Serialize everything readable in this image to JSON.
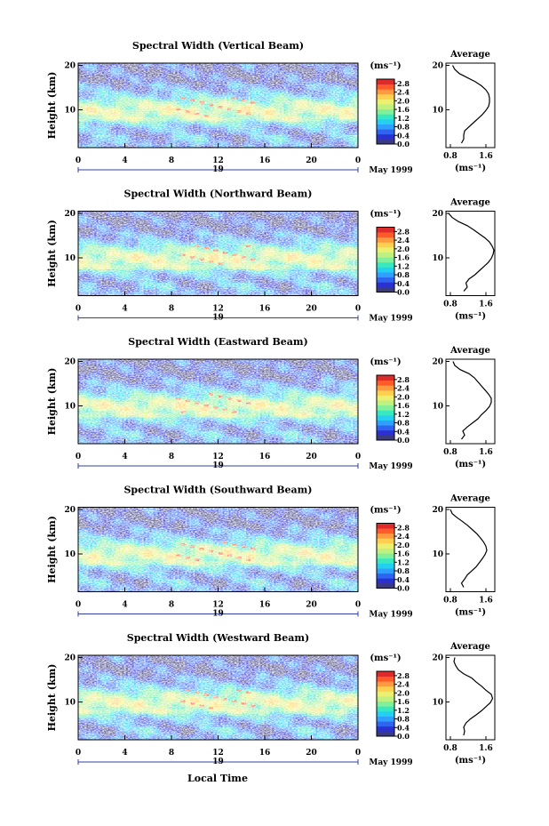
{
  "chart_data": {
    "type": "heatmap",
    "panels": [
      {
        "title": "Spectral Width (Vertical Beam)",
        "profile": [
          1.05,
          1.1,
          1.1,
          1.12,
          1.22,
          1.32,
          1.42,
          1.52,
          1.6,
          1.66,
          1.68,
          1.68,
          1.66,
          1.6,
          1.5,
          1.36,
          1.18,
          1.0,
          0.9,
          0.85
        ]
      },
      {
        "title": "Spectral Width (Northward Beam)",
        "profile": [
          1.1,
          1.18,
          1.15,
          1.22,
          1.35,
          1.45,
          1.55,
          1.65,
          1.72,
          1.76,
          1.78,
          1.74,
          1.68,
          1.58,
          1.45,
          1.32,
          1.18,
          0.98,
          0.84,
          0.76
        ]
      },
      {
        "title": "Spectral Width (Eastward Beam)",
        "profile": [
          1.05,
          1.12,
          1.08,
          1.18,
          1.3,
          1.42,
          1.5,
          1.6,
          1.68,
          1.72,
          1.72,
          1.66,
          1.58,
          1.5,
          1.42,
          1.34,
          1.22,
          1.02,
          0.9,
          0.86
        ]
      },
      {
        "title": "Spectral Width (Southward Beam)",
        "profile": [
          1.1,
          1.05,
          1.12,
          1.18,
          1.28,
          1.38,
          1.45,
          1.52,
          1.58,
          1.62,
          1.6,
          1.55,
          1.48,
          1.4,
          1.3,
          1.2,
          1.08,
          0.95,
          0.84,
          0.8
        ]
      },
      {
        "title": "Spectral Width (Westward Beam)",
        "profile": [
          1.1,
          1.12,
          1.1,
          1.15,
          1.25,
          1.38,
          1.5,
          1.6,
          1.7,
          1.75,
          1.72,
          1.6,
          1.5,
          1.38,
          1.28,
          1.1,
          0.98,
          0.92,
          0.88,
          0.9
        ]
      }
    ],
    "y_label": "Height (km)",
    "y_ticks": [
      "20",
      "10"
    ],
    "y_tick_values": [
      20,
      10
    ],
    "ylim": [
      1.5,
      20.5
    ],
    "x_ticks": [
      "0",
      "4",
      "8",
      "12",
      "16",
      "20",
      "0"
    ],
    "x_tick_values": [
      0,
      4,
      8,
      12,
      16,
      20,
      24
    ],
    "xlim": [
      0,
      24
    ],
    "day_label": "19",
    "date_label": "May 1999",
    "x_label": "Local Time",
    "colorbar": {
      "unit_label": "(ms⁻¹)",
      "tick_labels": [
        "2.8",
        "2.4",
        "2.0",
        "1.6",
        "1.2",
        "0.8",
        "0.4",
        "0.0"
      ],
      "tick_values": [
        2.8,
        2.4,
        2.0,
        1.6,
        1.2,
        0.8,
        0.4,
        0.0
      ],
      "range": [
        0.0,
        3.0
      ],
      "colors": [
        "#3a3a80",
        "#2b31d0",
        "#2e64f0",
        "#2fa0ff",
        "#24d0f0",
        "#38e8c0",
        "#80f09a",
        "#c0f080",
        "#ecf070",
        "#ffd050",
        "#ff9a40",
        "#ff5a2a",
        "#dd2a2a"
      ]
    },
    "average": {
      "title": "Average",
      "x_label": "(ms⁻¹)",
      "x_ticks": [
        "0.8",
        "1.6"
      ],
      "x_tick_values": [
        0.8,
        1.6
      ],
      "xlim": [
        0.7,
        1.8
      ],
      "y_ticks": [
        "20",
        "10"
      ],
      "y_tick_values": [
        20,
        10
      ]
    }
  }
}
